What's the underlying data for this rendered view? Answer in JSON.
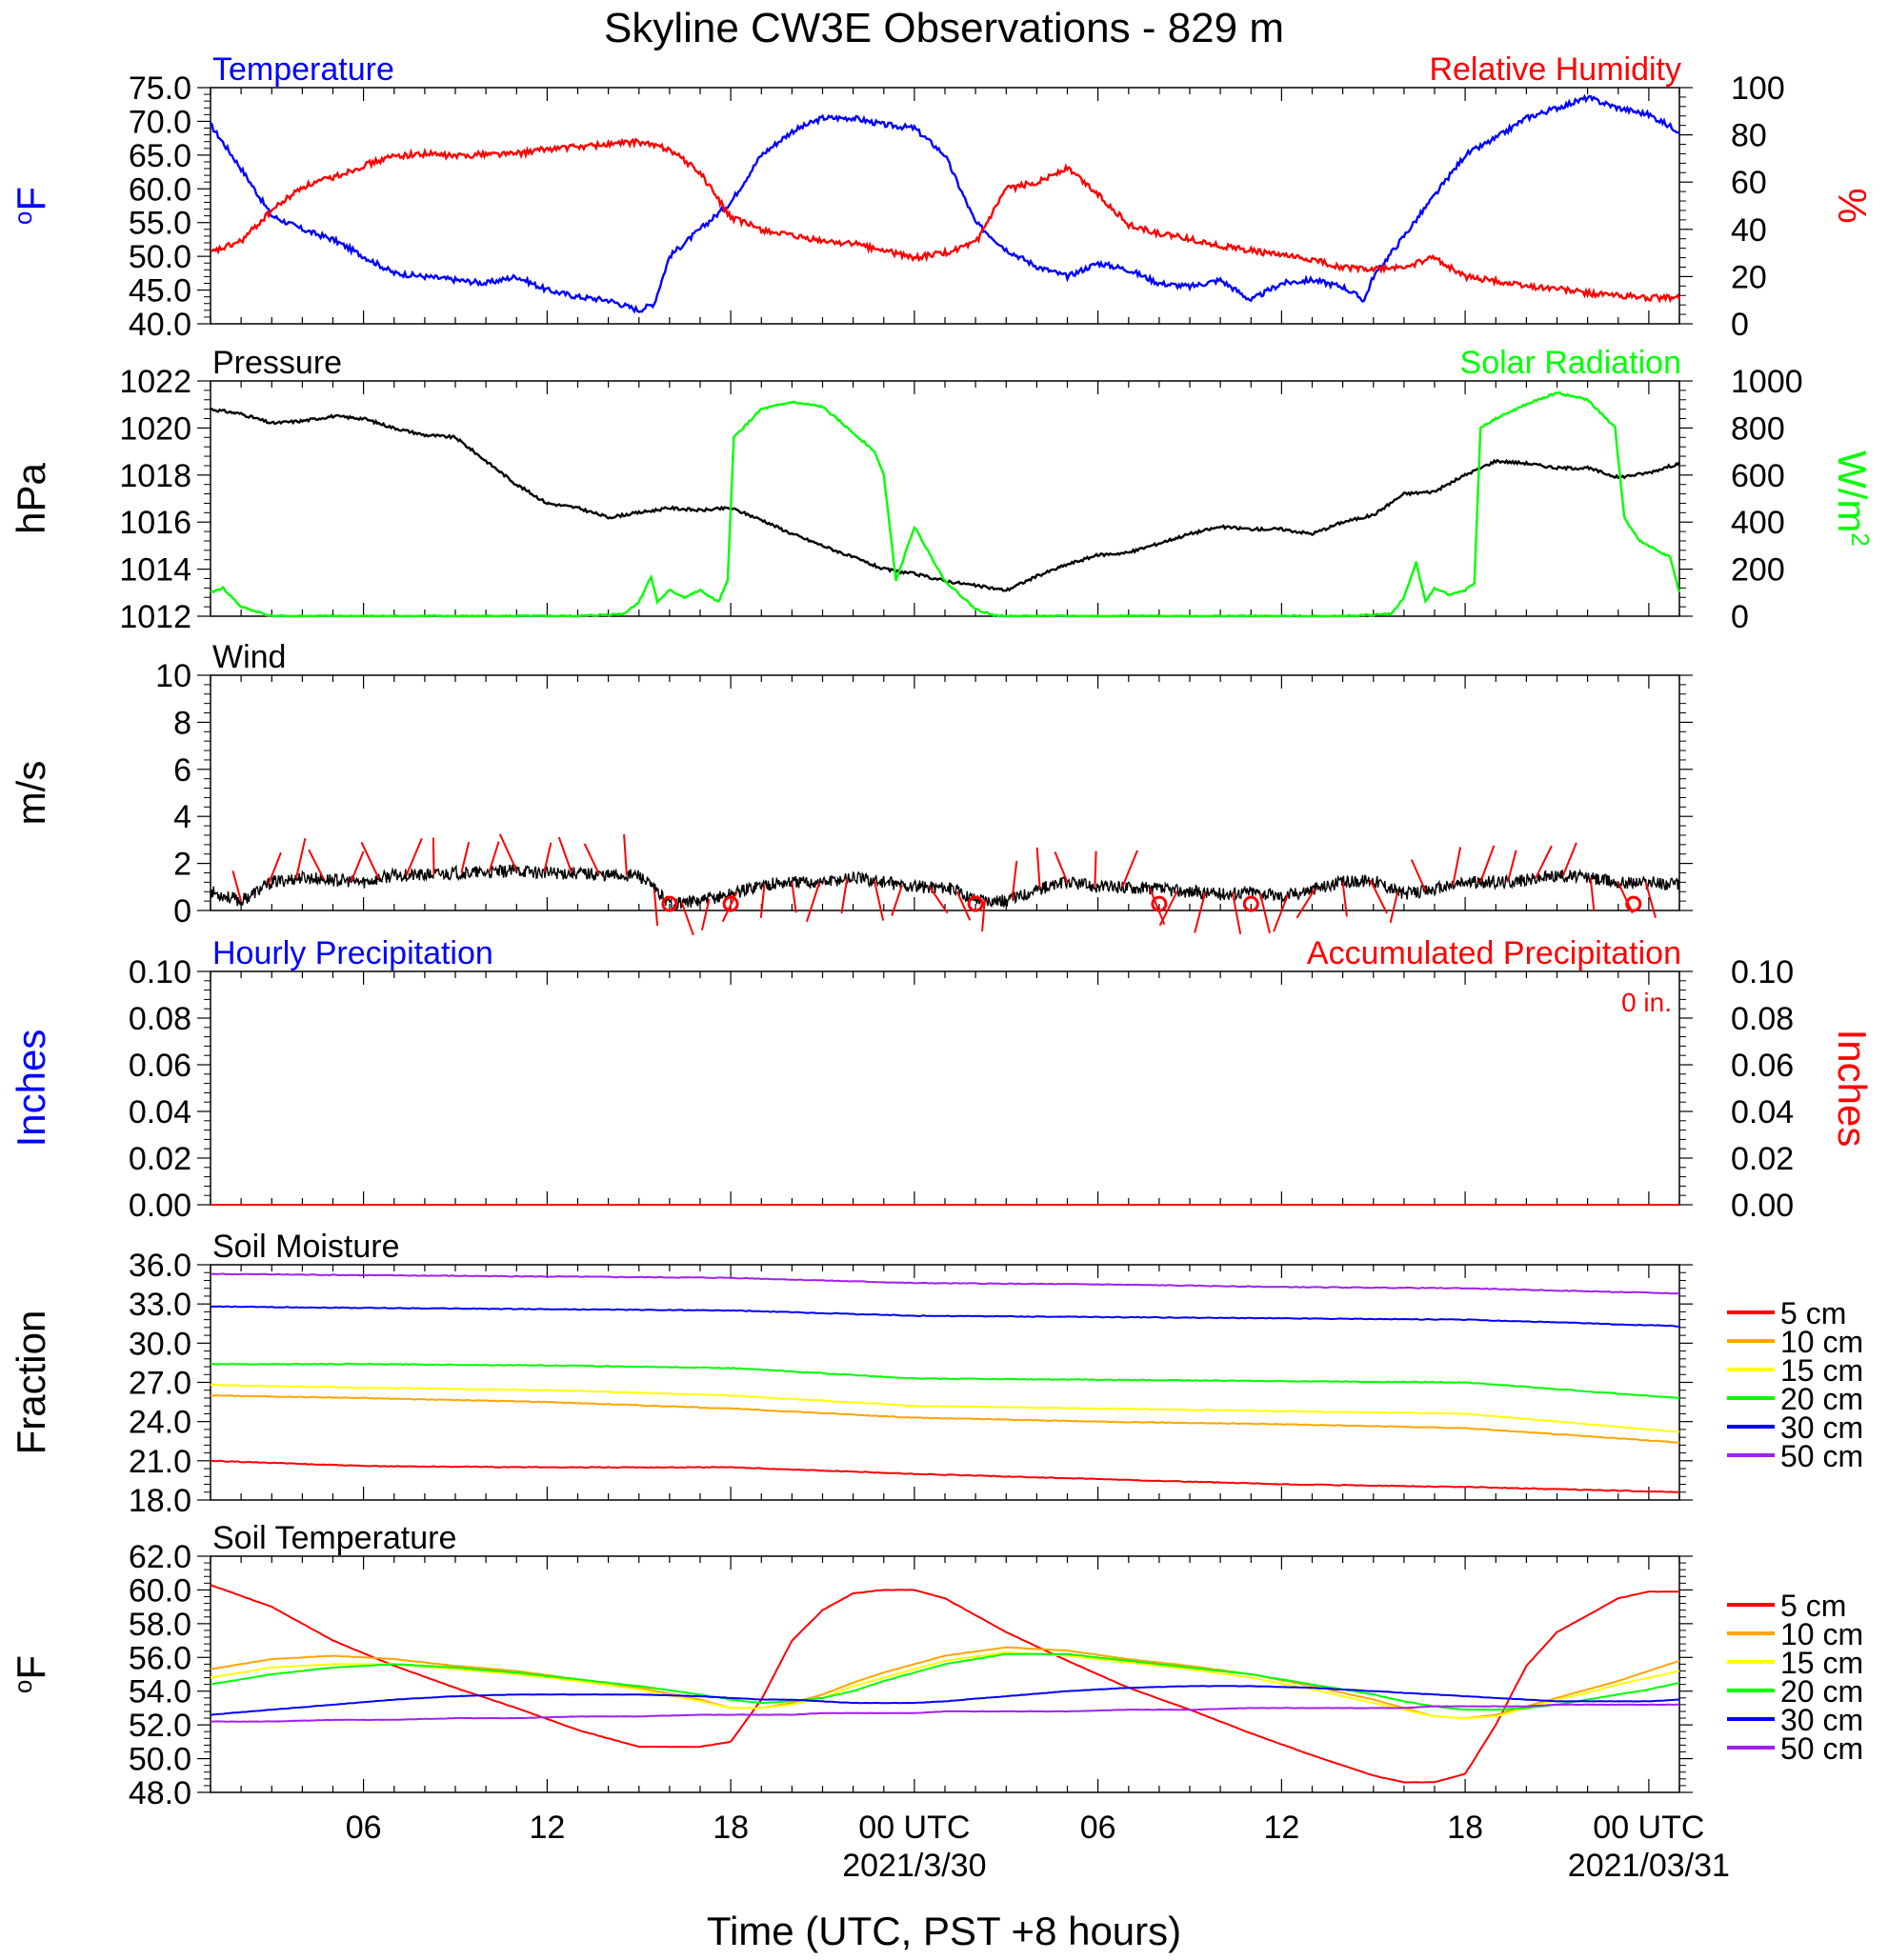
{
  "title": "Skyline CW3E Observations - 829 m",
  "xlabel": "Time (UTC, PST +8 hours)",
  "x_ticks": {
    "labels": [
      "06",
      "12",
      "18",
      "00 UTC",
      "06",
      "12",
      "18",
      "00 UTC"
    ],
    "hours": [
      6,
      12,
      18,
      24,
      30,
      36,
      42,
      48
    ],
    "date_labels": [
      {
        "text": "2021/3/30",
        "hour": 24
      },
      {
        "text": "2021/03/31",
        "hour": 48
      }
    ]
  },
  "x_range_hours": [
    1,
    49
  ],
  "colors": {
    "temperature": "#0000ff",
    "humidity": "#ff0000",
    "pressure": "#000000",
    "solar": "#00ff00",
    "wind": "#000000",
    "barb": "#ff0000",
    "d5": "#ff0000",
    "d10": "#ffa500",
    "d15": "#ffff00",
    "d20": "#00ff00",
    "d30": "#0000ff",
    "d50": "#a020f0"
  },
  "chart_data": [
    {
      "type": "line",
      "title_left": "Temperature",
      "title_right": "Relative Humidity",
      "ylabel_left": "oF",
      "ylabel_right": "%",
      "ylim": [
        40,
        75
      ],
      "ylim_right": [
        0,
        100
      ],
      "yticks_left": [
        "75.0",
        "70.0",
        "65.0",
        "60.0",
        "55.0",
        "50.0",
        "45.0",
        "40.0"
      ],
      "yticks_right": [
        "100",
        "80",
        "60",
        "40",
        "20",
        "0"
      ],
      "series": [
        {
          "name": "Temperature",
          "axis": "left",
          "x": [
            1,
            2,
            3,
            4,
            5,
            6,
            7,
            8,
            9,
            10,
            11,
            12,
            13,
            14,
            15,
            15.5,
            16,
            17,
            18,
            19,
            20,
            21,
            22,
            23,
            24,
            25,
            26,
            27,
            28,
            29,
            30,
            31,
            32,
            33,
            34,
            35,
            36,
            37,
            38,
            38.7,
            39,
            40,
            41,
            42,
            43,
            44,
            45,
            46,
            47,
            48,
            49
          ],
          "y": [
            69.5,
            63,
            56,
            54,
            52.5,
            50,
            47.5,
            47,
            46.5,
            46,
            47,
            45,
            44,
            43.5,
            42,
            43,
            50,
            54,
            58,
            65,
            68.5,
            70.5,
            70.5,
            69.5,
            69,
            65,
            55,
            51,
            48.5,
            47,
            49,
            48,
            46,
            45.5,
            46.5,
            43.5,
            46,
            46.5,
            45.5,
            43.5,
            47,
            53,
            59,
            65,
            67.5,
            70.5,
            72,
            73.5,
            72,
            71,
            68.5
          ]
        },
        {
          "name": "Relative Humidity",
          "axis": "right",
          "x": [
            1,
            2,
            3,
            4,
            5,
            6,
            7,
            8,
            9,
            10,
            11,
            12,
            13,
            14,
            15,
            16,
            17,
            18,
            19,
            20,
            21,
            22,
            23,
            24,
            25,
            26,
            27,
            28,
            29,
            30,
            31,
            32,
            33,
            34,
            35,
            36,
            37,
            38,
            39,
            40,
            41,
            42,
            43,
            44,
            45,
            46,
            47,
            48,
            49
          ],
          "y": [
            30,
            35,
            48,
            58,
            62,
            67,
            71,
            72,
            71,
            72,
            72,
            74,
            75,
            76,
            77,
            74,
            64,
            45,
            40,
            37,
            35,
            34,
            31,
            28,
            30,
            34,
            57,
            60,
            66,
            55,
            42,
            38,
            36,
            33,
            31,
            29,
            27,
            24,
            23,
            24,
            28,
            20,
            18,
            16,
            15,
            13,
            12,
            11,
            11
          ]
        }
      ]
    },
    {
      "type": "line",
      "title_left": "Pressure",
      "title_right": "Solar Radiation",
      "ylabel_left": "hPa",
      "ylabel_right": "W/m2",
      "ylim": [
        1012,
        1022
      ],
      "ylim_right": [
        0,
        1000
      ],
      "yticks_left": [
        "1022",
        "1020",
        "1018",
        "1016",
        "1014",
        "1012"
      ],
      "yticks_right": [
        "1000",
        "800",
        "600",
        "400",
        "200",
        "0"
      ],
      "series": [
        {
          "name": "Pressure",
          "axis": "left",
          "x": [
            1,
            2,
            3,
            4,
            5,
            6,
            7,
            8,
            9,
            10,
            11,
            12,
            13,
            14,
            15,
            16,
            17,
            18,
            19,
            20,
            21,
            22,
            23,
            24,
            25,
            26,
            27,
            28,
            29,
            30,
            31,
            32,
            33,
            34,
            35,
            36,
            37,
            38,
            39,
            40,
            41,
            42,
            43,
            44,
            45,
            46,
            47,
            48,
            49
          ],
          "y": [
            1020.8,
            1020.6,
            1020.2,
            1020.3,
            1020.5,
            1020.4,
            1020.0,
            1019.7,
            1019.6,
            1018.6,
            1017.6,
            1016.8,
            1016.6,
            1016.2,
            1016.4,
            1016.6,
            1016.5,
            1016.6,
            1016.1,
            1015.5,
            1015.0,
            1014.5,
            1014.0,
            1013.8,
            1013.5,
            1013.3,
            1013.1,
            1013.7,
            1014.2,
            1014.6,
            1014.7,
            1015.1,
            1015.5,
            1015.8,
            1015.7,
            1015.7,
            1015.5,
            1016.0,
            1016.3,
            1017.2,
            1017.3,
            1018.0,
            1018.6,
            1018.5,
            1018.3,
            1018.3,
            1017.9,
            1018.1,
            1018.5
          ]
        },
        {
          "name": "Solar Radiation",
          "axis": "right",
          "x": [
            1,
            1.4,
            2,
            3,
            4,
            13,
            14.5,
            15,
            15.4,
            15.6,
            16,
            16.5,
            17,
            17.6,
            17.9,
            18.1,
            19,
            20,
            21,
            22,
            22.7,
            23,
            23.4,
            24,
            25,
            26,
            26.7,
            27,
            38,
            39.6,
            40,
            40.4,
            40.7,
            41,
            41.5,
            42,
            42.3,
            42.5,
            43,
            44,
            45,
            46,
            46.9,
            47.2,
            47.7,
            48,
            48.7,
            49
          ],
          "y": [
            100,
            120,
            40,
            0,
            0,
            0,
            10,
            60,
            170,
            60,
            110,
            80,
            110,
            60,
            150,
            760,
            880,
            910,
            890,
            780,
            700,
            600,
            150,
            380,
            150,
            30,
            0,
            0,
            0,
            10,
            80,
            230,
            60,
            120,
            90,
            110,
            140,
            800,
            840,
            900,
            950,
            920,
            800,
            420,
            320,
            300,
            250,
            100
          ]
        }
      ]
    },
    {
      "type": "line",
      "title_left": "Wind",
      "ylabel_left": "m/s",
      "ylim": [
        0,
        10
      ],
      "yticks_left": [
        "10",
        "8",
        "6",
        "4",
        "2",
        "0"
      ],
      "series": [
        {
          "name": "Wind",
          "axis": "left",
          "x": [
            1,
            2,
            3,
            4,
            5,
            6,
            7,
            8,
            9,
            10,
            11,
            12,
            13,
            14,
            15,
            16,
            17,
            18,
            19,
            20,
            21,
            22,
            23,
            24,
            25,
            26,
            27,
            28,
            29,
            30,
            31,
            32,
            33,
            34,
            35,
            36,
            37,
            38,
            39,
            40,
            41,
            42,
            43,
            44,
            45,
            46,
            47,
            48,
            49
          ],
          "y": [
            0.8,
            0.4,
            1.2,
            1.4,
            1.3,
            1.2,
            1.5,
            1.5,
            1.6,
            1.6,
            1.7,
            1.6,
            1.6,
            1.5,
            1.5,
            0.3,
            0.4,
            0.7,
            1.1,
            1.2,
            1.2,
            1.4,
            1.2,
            1.0,
            1.0,
            0.5,
            0.4,
            0.9,
            1.2,
            1.0,
            1.0,
            0.9,
            0.8,
            0.7,
            0.8,
            0.6,
            0.9,
            1.2,
            1.3,
            0.7,
            0.9,
            1.2,
            1.2,
            1.3,
            1.5,
            1.4,
            1.2,
            1.2,
            1.1
          ]
        }
      ],
      "calm_hours": [
        16,
        18,
        26,
        32,
        35,
        47.5
      ]
    },
    {
      "type": "line",
      "title_left": "Hourly Precipitation",
      "title_right": "Accumulated Precipitation",
      "annotation": "0 in.",
      "ylabel_left": "Inches",
      "ylabel_right": "Inches",
      "ylim": [
        0,
        0.1
      ],
      "yticks_left": [
        "0.10",
        "0.08",
        "0.06",
        "0.04",
        "0.02",
        "0.00"
      ],
      "yticks_right": [
        "0.10",
        "0.08",
        "0.06",
        "0.04",
        "0.02",
        "0.00"
      ],
      "series": [
        {
          "name": "Hourly Precipitation",
          "axis": "left",
          "x": [
            1,
            49
          ],
          "y": [
            0,
            0
          ]
        },
        {
          "name": "Accumulated Precipitation",
          "axis": "right",
          "x": [
            1,
            49
          ],
          "y": [
            0,
            0
          ]
        }
      ]
    },
    {
      "type": "line",
      "title_left": "Soil Moisture",
      "ylabel_left": "Fraction",
      "ylim": [
        18,
        36
      ],
      "yticks_left": [
        "36.0",
        "33.0",
        "30.0",
        "27.0",
        "24.0",
        "21.0",
        "18.0"
      ],
      "x": [
        1,
        6,
        12,
        18,
        24,
        30,
        36,
        42,
        49
      ],
      "series": [
        {
          "name": "5 cm",
          "values": [
            21.0,
            20.6,
            20.5,
            20.5,
            20.0,
            19.6,
            19.2,
            19.0,
            18.6
          ]
        },
        {
          "name": "10 cm",
          "values": [
            26.0,
            25.8,
            25.5,
            25.0,
            24.3,
            24.0,
            23.8,
            23.5,
            22.4
          ]
        },
        {
          "name": "15 cm",
          "values": [
            26.8,
            26.6,
            26.4,
            26.0,
            25.2,
            25.0,
            24.8,
            24.6,
            23.2
          ]
        },
        {
          "name": "20 cm",
          "values": [
            28.4,
            28.4,
            28.3,
            28.1,
            27.3,
            27.2,
            27.1,
            27.0,
            25.8
          ]
        },
        {
          "name": "30 cm",
          "values": [
            32.8,
            32.7,
            32.6,
            32.5,
            32.1,
            32.0,
            31.9,
            31.8,
            31.3
          ]
        },
        {
          "name": "50 cm",
          "values": [
            35.3,
            35.2,
            35.1,
            35.0,
            34.6,
            34.5,
            34.3,
            34.2,
            33.8
          ]
        }
      ],
      "legend": [
        "5 cm",
        "10 cm",
        "15 cm",
        "20 cm",
        "30 cm",
        "50 cm"
      ]
    },
    {
      "type": "line",
      "title_left": "Soil Temperature",
      "ylabel_left": "oF",
      "ylim": [
        48,
        62
      ],
      "yticks_left": [
        "62.0",
        "60.0",
        "58.0",
        "56.0",
        "54.0",
        "52.0",
        "50.0",
        "48.0"
      ],
      "x": [
        1,
        3,
        5,
        7,
        9,
        11,
        13,
        15,
        17,
        18,
        19,
        20,
        21,
        22,
        23,
        24,
        25,
        27,
        29,
        31,
        33,
        35,
        37,
        39,
        40,
        41,
        42,
        43,
        44,
        45,
        46,
        47,
        48,
        49
      ],
      "series": [
        {
          "name": "5 cm",
          "values": [
            60.3,
            59.0,
            57.0,
            55.5,
            54.2,
            53.0,
            51.7,
            50.7,
            50.7,
            51.0,
            53.5,
            57.0,
            58.8,
            59.8,
            60.0,
            60.0,
            59.5,
            57.5,
            55.8,
            54.2,
            52.9,
            51.5,
            50.2,
            49.0,
            48.6,
            48.6,
            49.1,
            52.0,
            55.5,
            57.5,
            58.5,
            59.5,
            59.9,
            59.9
          ]
        },
        {
          "name": "10 cm",
          "values": [
            55.3,
            55.9,
            56.1,
            55.9,
            55.5,
            55.2,
            54.7,
            54.2,
            53.5,
            53.0,
            53.0,
            53.3,
            53.8,
            54.5,
            55.1,
            55.6,
            56.1,
            56.6,
            56.4,
            55.9,
            55.5,
            55.0,
            54.3,
            53.5,
            53.0,
            52.5,
            52.4,
            52.6,
            53.1,
            53.6,
            54.1,
            54.6,
            55.2,
            55.8
          ]
        },
        {
          "name": "15 cm",
          "values": [
            54.8,
            55.4,
            55.6,
            55.6,
            55.3,
            55.0,
            54.6,
            54.1,
            53.4,
            53.0,
            53.0,
            53.2,
            53.6,
            54.3,
            54.8,
            55.3,
            55.8,
            56.3,
            56.1,
            55.7,
            55.3,
            54.8,
            54.1,
            53.3,
            52.9,
            52.5,
            52.4,
            52.5,
            53.0,
            53.5,
            53.9,
            54.4,
            54.8,
            55.2
          ]
        },
        {
          "name": "20 cm",
          "values": [
            54.4,
            55.0,
            55.4,
            55.6,
            55.4,
            55.1,
            54.7,
            54.3,
            53.8,
            53.5,
            53.3,
            53.4,
            53.6,
            54.0,
            54.6,
            55.1,
            55.6,
            56.2,
            56.2,
            55.8,
            55.4,
            55.0,
            54.4,
            53.8,
            53.4,
            53.1,
            52.9,
            52.9,
            53.0,
            53.2,
            53.5,
            53.8,
            54.1,
            54.5
          ]
        },
        {
          "name": "30 cm",
          "values": [
            52.6,
            52.9,
            53.2,
            53.5,
            53.7,
            53.8,
            53.8,
            53.8,
            53.7,
            53.6,
            53.5,
            53.5,
            53.4,
            53.3,
            53.3,
            53.3,
            53.4,
            53.7,
            54.0,
            54.2,
            54.3,
            54.3,
            54.2,
            54.0,
            53.9,
            53.8,
            53.7,
            53.6,
            53.5,
            53.4,
            53.4,
            53.4,
            53.4,
            53.5
          ]
        },
        {
          "name": "50 cm",
          "values": [
            52.2,
            52.2,
            52.3,
            52.3,
            52.4,
            52.4,
            52.5,
            52.5,
            52.6,
            52.6,
            52.6,
            52.6,
            52.7,
            52.7,
            52.7,
            52.7,
            52.8,
            52.8,
            52.8,
            52.9,
            52.9,
            53.0,
            53.0,
            53.0,
            53.0,
            53.1,
            53.1,
            53.1,
            53.1,
            53.2,
            53.2,
            53.2,
            53.2,
            53.2
          ]
        }
      ],
      "legend": [
        "5 cm",
        "10 cm",
        "15 cm",
        "20 cm",
        "30 cm",
        "50 cm"
      ]
    }
  ]
}
